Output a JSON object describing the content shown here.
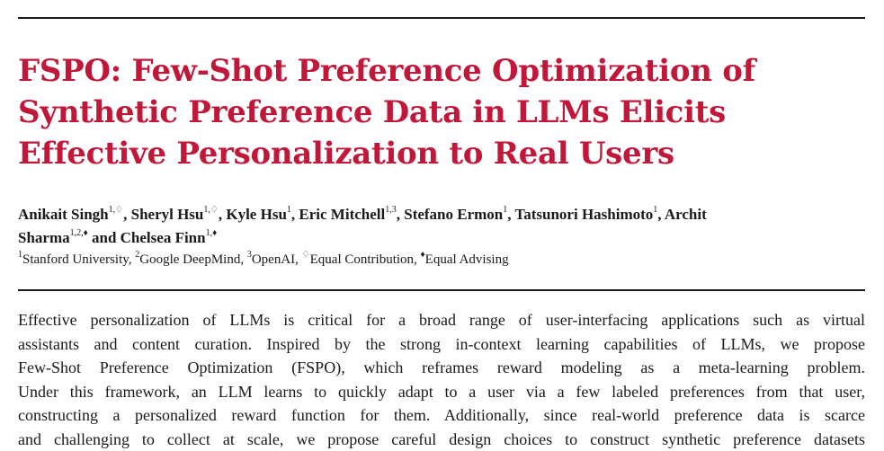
{
  "title_lines": [
    "FSPO: Few-Shot Preference Optimization of",
    "Synthetic Preference Data in LLMs Elicits",
    "Effective Personalization to Real Users"
  ],
  "authors": [
    {
      "name": "Anikait Singh",
      "sup": "1,♢"
    },
    {
      "name": "Sheryl Hsu",
      "sup": "1,♢"
    },
    {
      "name": "Kyle Hsu",
      "sup": "1"
    },
    {
      "name": "Eric Mitchell",
      "sup": "1,3"
    },
    {
      "name": "Stefano Ermon",
      "sup": "1"
    },
    {
      "name": "Tatsunori Hashimoto",
      "sup": "1"
    },
    {
      "name_line1": "Archit",
      "name_line2": "Sharma",
      "sup": "1,2,♦"
    },
    {
      "name": "Chelsea Finn",
      "sup": "1,♦"
    }
  ],
  "author_connector": "and",
  "affiliations": [
    {
      "sup": "1",
      "text": "Stanford University"
    },
    {
      "sup": "2",
      "text": "Google DeepMind"
    },
    {
      "sup": "3",
      "text": "OpenAI"
    },
    {
      "sup": "♢",
      "text": "Equal Contribution"
    },
    {
      "sup": "♦",
      "text": "Equal Advising"
    }
  ],
  "abstract_lines": [
    "Effective personalization of LLMs is critical for a broad range of user-interfacing applications such as virtual",
    "assistants and content curation. Inspired by the strong in-context learning capabilities of LLMs, we propose",
    "Few-Shot Preference Optimization (FSPO), which reframes reward modeling as a meta-learning problem.",
    "Under this framework, an LLM learns to quickly adapt to a user via a few labeled preferences from that user,",
    "constructing a personalized reward function for them. Additionally, since real-world preference data is scarce",
    "and challenging to collect at scale, we propose careful design choices to construct synthetic preference datasets"
  ]
}
